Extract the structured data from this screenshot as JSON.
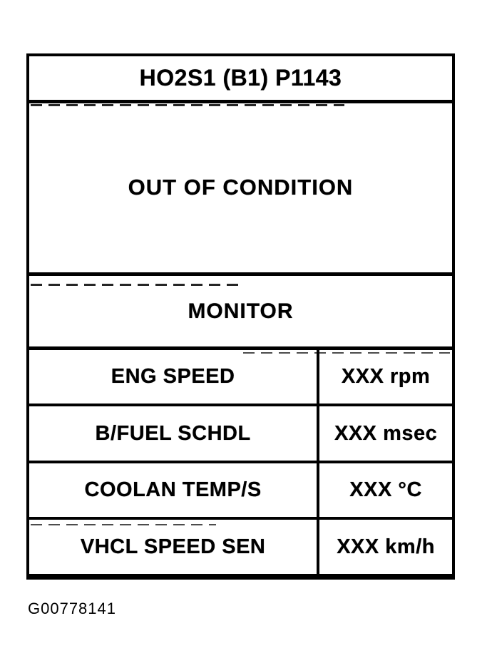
{
  "figure": {
    "header": {
      "title": "HO2S1 (B1) P1143"
    },
    "condition": {
      "text": "OUT OF CONDITION"
    },
    "monitor": {
      "label": "MONITOR"
    },
    "parameters": [
      {
        "label": "ENG SPEED",
        "value": "XXX rpm"
      },
      {
        "label": "B/FUEL SCHDL",
        "value": "XXX msec"
      },
      {
        "label": "COOLAN TEMP/S",
        "value": "XXX °C"
      },
      {
        "label": "VHCL SPEED SEN",
        "value": "XXX km/h"
      }
    ],
    "caption": "G00778141",
    "colors": {
      "ink": "#000000",
      "paper": "#ffffff"
    }
  }
}
